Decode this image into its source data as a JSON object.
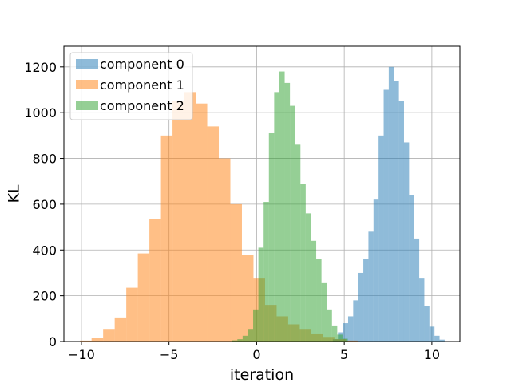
{
  "chart_data": {
    "type": "bar",
    "xlabel": "iteration",
    "ylabel": "KL",
    "xlim": [
      -11.0,
      11.6
    ],
    "ylim": [
      0,
      1290
    ],
    "x_ticks": [
      -10,
      -5,
      0,
      5,
      10
    ],
    "x_tick_labels": [
      "−10",
      "−5",
      "0",
      "5",
      "10"
    ],
    "y_ticks": [
      0,
      200,
      400,
      600,
      800,
      1000,
      1200
    ],
    "y_tick_labels": [
      "0",
      "200",
      "400",
      "600",
      "800",
      "1000",
      "1200"
    ],
    "grid": true,
    "legend_position": "upper-left",
    "series": [
      {
        "name": "component 0",
        "color": "#1f77b4",
        "opacity": 0.5,
        "bin_width": 0.29,
        "bins": [
          [
            4.06,
            2
          ],
          [
            4.35,
            10
          ],
          [
            4.64,
            40
          ],
          [
            4.93,
            80
          ],
          [
            5.22,
            110
          ],
          [
            5.51,
            180
          ],
          [
            5.8,
            300
          ],
          [
            6.09,
            360
          ],
          [
            6.38,
            480
          ],
          [
            6.67,
            620
          ],
          [
            6.96,
            900
          ],
          [
            7.25,
            1100
          ],
          [
            7.54,
            1200
          ],
          [
            7.83,
            1140
          ],
          [
            8.12,
            1050
          ],
          [
            8.41,
            870
          ],
          [
            8.7,
            640
          ],
          [
            8.99,
            450
          ],
          [
            9.28,
            275
          ],
          [
            9.57,
            155
          ],
          [
            9.86,
            65
          ],
          [
            10.15,
            25
          ],
          [
            10.44,
            8
          ]
        ]
      },
      {
        "name": "component 1",
        "color": "#ff7f0e",
        "opacity": 0.5,
        "bin_width": 0.66,
        "bins": [
          [
            -10.08,
            4
          ],
          [
            -9.42,
            15
          ],
          [
            -8.76,
            55
          ],
          [
            -8.1,
            105
          ],
          [
            -7.44,
            235
          ],
          [
            -6.78,
            385
          ],
          [
            -6.12,
            535
          ],
          [
            -5.46,
            900
          ],
          [
            -4.8,
            1050
          ],
          [
            -4.14,
            1090
          ],
          [
            -3.48,
            1040
          ],
          [
            -2.82,
            940
          ],
          [
            -2.16,
            800
          ],
          [
            -1.5,
            600
          ],
          [
            -0.84,
            380
          ],
          [
            -0.18,
            275
          ],
          [
            0.48,
            160
          ],
          [
            1.14,
            110
          ],
          [
            1.8,
            75
          ],
          [
            2.46,
            55
          ],
          [
            3.12,
            35
          ],
          [
            3.78,
            20
          ],
          [
            4.44,
            10
          ],
          [
            5.1,
            4
          ]
        ]
      },
      {
        "name": "component 2",
        "color": "#2ca02c",
        "opacity": 0.5,
        "bin_width": 0.3,
        "bins": [
          [
            -1.4,
            5
          ],
          [
            -1.1,
            10
          ],
          [
            -0.8,
            25
          ],
          [
            -0.5,
            55
          ],
          [
            -0.2,
            140
          ],
          [
            0.1,
            410
          ],
          [
            0.4,
            610
          ],
          [
            0.7,
            910
          ],
          [
            1.0,
            1090
          ],
          [
            1.3,
            1180
          ],
          [
            1.6,
            1130
          ],
          [
            1.9,
            1030
          ],
          [
            2.2,
            860
          ],
          [
            2.5,
            690
          ],
          [
            2.8,
            560
          ],
          [
            3.1,
            440
          ],
          [
            3.4,
            360
          ],
          [
            3.7,
            255
          ],
          [
            4.0,
            140
          ],
          [
            4.3,
            70
          ],
          [
            4.6,
            30
          ],
          [
            4.9,
            12
          ]
        ]
      }
    ]
  }
}
